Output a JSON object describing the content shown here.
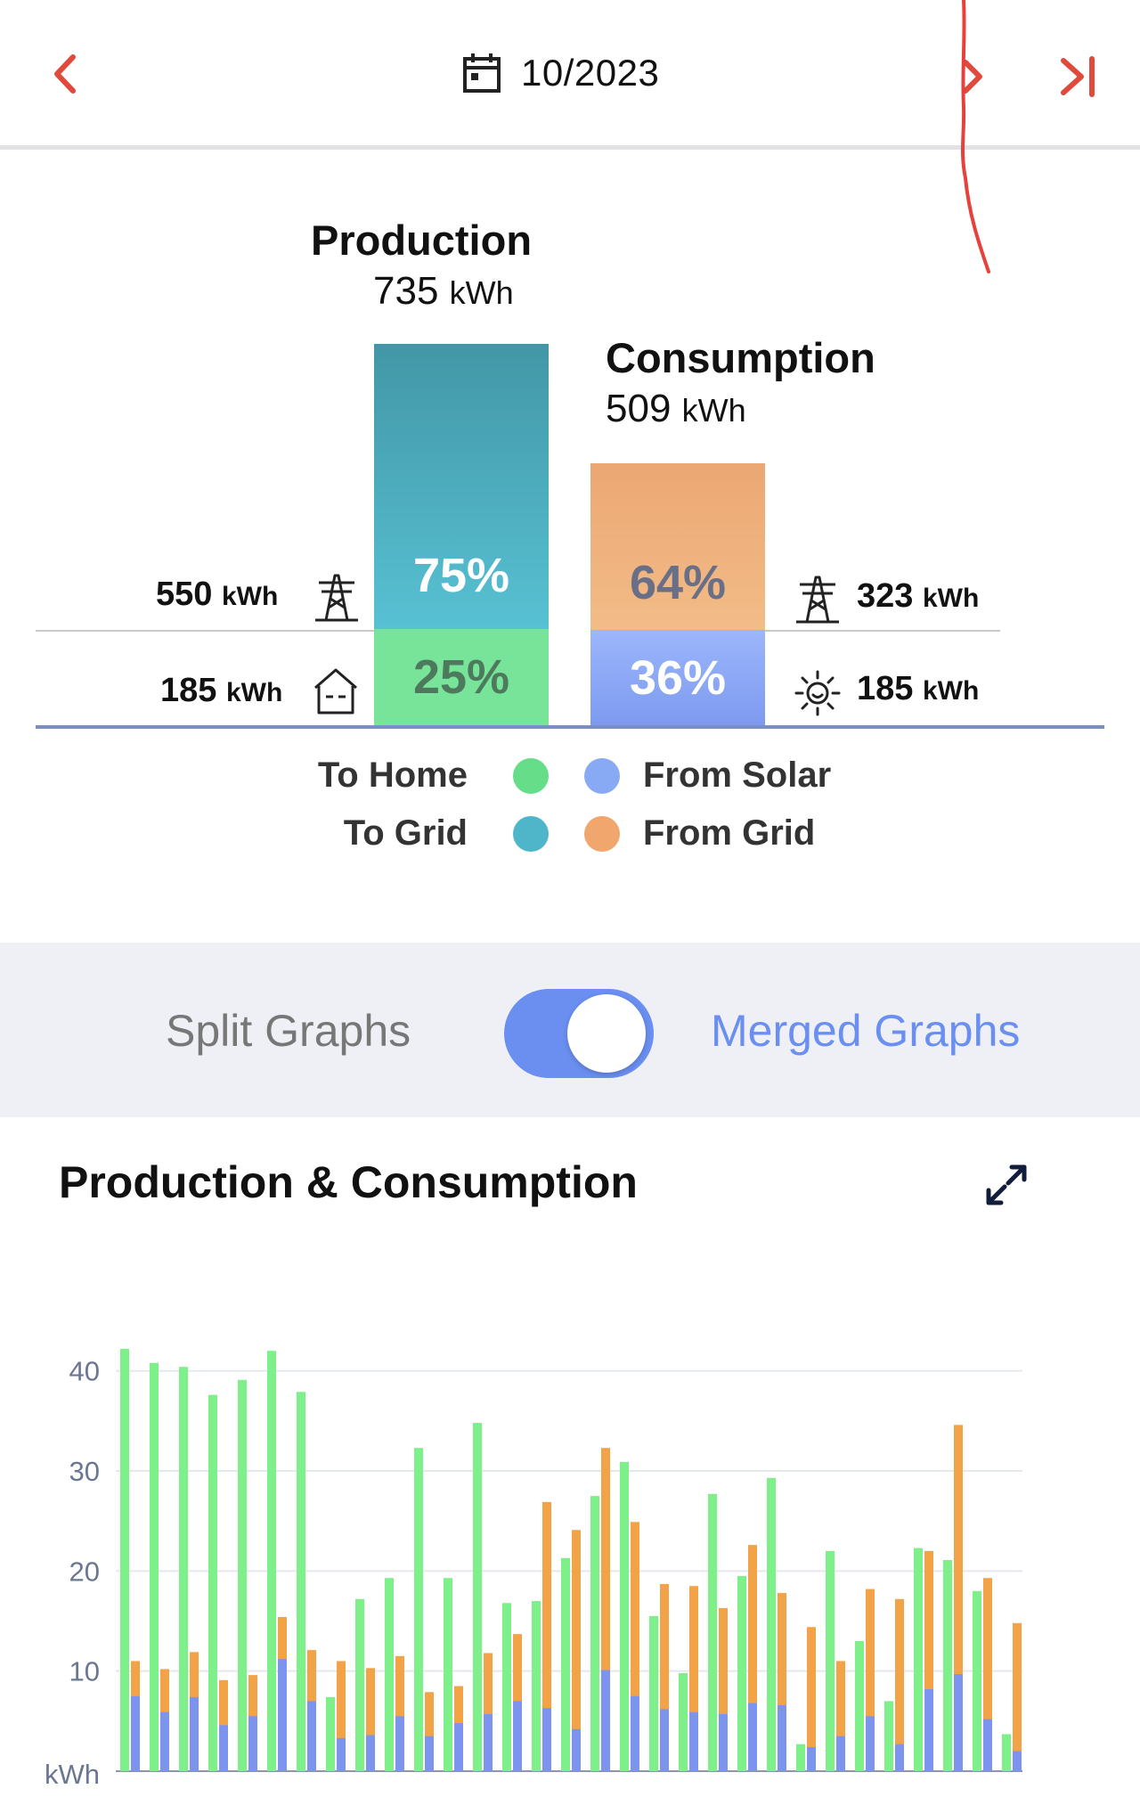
{
  "header": {
    "date": "10/2023",
    "prev_icon": "chevron-left-icon",
    "next_icon": "chevron-right-icon",
    "last_icon": "skip-to-end-icon",
    "calendar_icon": "calendar-icon",
    "accent": "#e04a3c"
  },
  "summary": {
    "production": {
      "title": "Production",
      "value": "735",
      "unit": "kWh"
    },
    "consumption": {
      "title": "Consumption",
      "value": "509",
      "unit": "kWh"
    },
    "production_bar": {
      "grid_pct": "75%",
      "home_pct": "25%",
      "grid_fraction": 0.75,
      "home_fraction": 0.25
    },
    "consumption_bar": {
      "grid_pct": "64%",
      "solar_pct": "36%",
      "grid_fraction": 0.64,
      "solar_fraction": 0.36
    },
    "left": {
      "grid_value": "550",
      "grid_unit": "kWh",
      "grid_icon": "power-tower-icon",
      "home_value": "185",
      "home_unit": "kWh",
      "home_icon": "house-icon"
    },
    "right": {
      "grid_value": "323",
      "grid_unit": "kWh",
      "grid_icon": "power-tower-icon",
      "solar_value": "185",
      "solar_unit": "kWh",
      "solar_icon": "sun-icon"
    },
    "legend": [
      {
        "label": "To Home",
        "color": "#66dd88"
      },
      {
        "label": "To Grid",
        "color": "#4fb5c8"
      },
      {
        "label": "From Solar",
        "color": "#88aaf5"
      },
      {
        "label": "From Grid",
        "color": "#f0a66d"
      }
    ]
  },
  "toggle": {
    "split_label": "Split Graphs",
    "merged_label": "Merged Graphs",
    "state": "merged"
  },
  "detail": {
    "title": "Production & Consumption",
    "expand_icon": "expand-icon"
  },
  "chart_data": {
    "type": "bar",
    "ylabel": "kWh",
    "ylim": [
      0,
      43
    ],
    "yticks": [
      "10",
      "20",
      "30",
      "40"
    ],
    "grid": true,
    "x": [
      1,
      2,
      3,
      4,
      5,
      6,
      7,
      8,
      9,
      10,
      11,
      12,
      13,
      14,
      15,
      16,
      17,
      18,
      19,
      20,
      21,
      22,
      23,
      24,
      25,
      26,
      27,
      28,
      29,
      30,
      31
    ],
    "series": [
      {
        "name": "To Home",
        "color": "#7ef08a",
        "values": [
          42.2,
          40.8,
          40.4,
          37.6,
          39.1,
          42,
          37.9,
          7.4,
          17.2,
          19.3,
          32.3,
          19.3,
          34.8,
          16.8,
          17,
          21.3,
          27.5,
          30.9,
          15.5,
          9.8,
          27.7,
          19.5,
          29.3,
          2.7,
          22,
          13,
          7,
          22.3,
          21.1,
          18,
          3.7
        ]
      },
      {
        "name": "From Grid",
        "color": "#f3a347",
        "values": [
          11,
          10.2,
          11.9,
          9.1,
          9.6,
          15.4,
          12.1,
          11,
          10.3,
          11.5,
          7.9,
          8.5,
          11.8,
          13.7,
          26.9,
          24.1,
          32.3,
          24.9,
          18.7,
          18.5,
          16.3,
          22.6,
          17.8,
          14.4,
          11,
          18.2,
          17.2,
          22,
          34.6,
          19.3,
          14.8
        ]
      },
      {
        "name": "From Solar",
        "color": "#7d94ee",
        "values": [
          7.5,
          5.9,
          7.4,
          4.6,
          5.5,
          11.2,
          7,
          3.3,
          3.6,
          5.5,
          3.5,
          4.8,
          5.7,
          7,
          6.3,
          4.2,
          10.1,
          7.5,
          6.2,
          5.9,
          5.7,
          6.8,
          6.6,
          2.4,
          3.5,
          5.5,
          2.7,
          8.2,
          9.7,
          5.2,
          2
        ]
      }
    ]
  }
}
